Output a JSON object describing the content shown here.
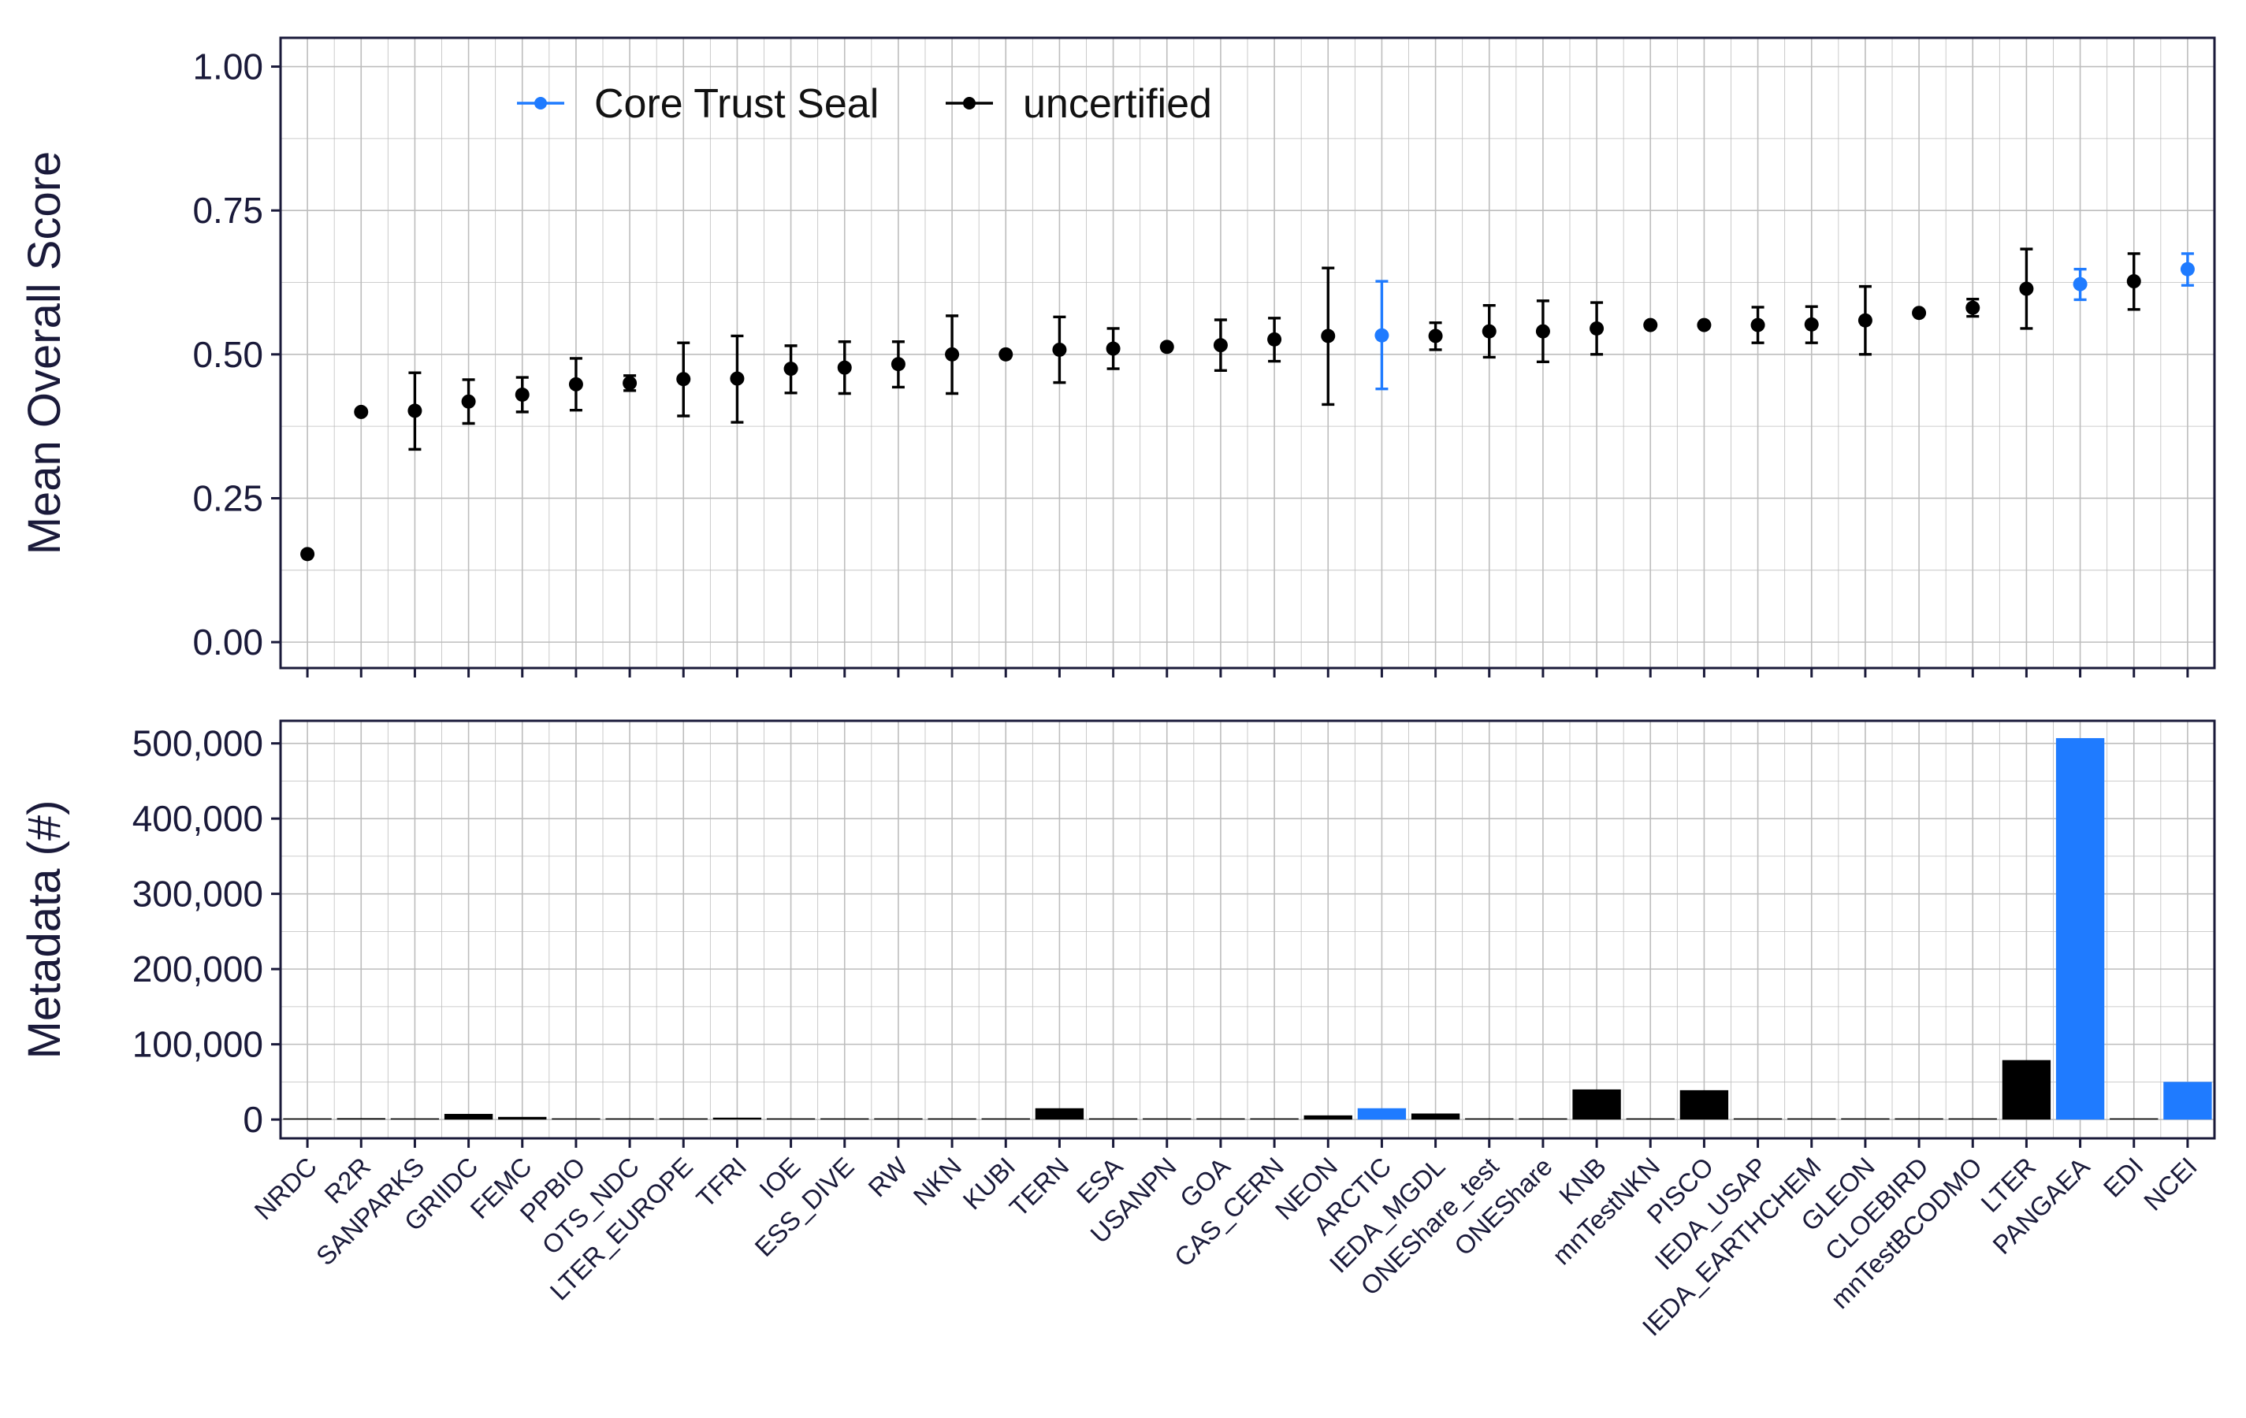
{
  "colors": {
    "certified": "#1f7bff",
    "uncertified": "#000000",
    "grid": "#bdbdbd",
    "text": "#1a1a3a",
    "frame": "#1a1a3a"
  },
  "legend": {
    "placement": "top-left",
    "items": [
      {
        "label": "Core Trust Seal",
        "color": "#1f7bff"
      },
      {
        "label": "uncertified",
        "color": "#000000"
      }
    ]
  },
  "chart_data": [
    {
      "type": "scatter",
      "panel": "top",
      "ylabel": "Mean Overall Score",
      "xlabel": "",
      "ylim": [
        -0.045,
        1.05
      ],
      "yticks": [
        0,
        0.25,
        0.5,
        0.75,
        1.0
      ],
      "ytick_labels": [
        "0.00",
        "0.25",
        "0.50",
        "0.75",
        "1.00"
      ],
      "grid": true,
      "error_bars": true,
      "categories": [
        "NRDC",
        "R2R",
        "SANPARKS",
        "GRIIDC",
        "FEMC",
        "PPBIO",
        "OTS_NDC",
        "LTER_EUROPE",
        "TFRI",
        "IOE",
        "ESS_DIVE",
        "RW",
        "NKN",
        "KUBI",
        "TERN",
        "ESA",
        "USANPN",
        "GOA",
        "CAS_CERN",
        "NEON",
        "ARCTIC",
        "IEDA_MGDL",
        "ONEShare_test",
        "ONEShare",
        "KNB",
        "mnTestNKN",
        "PISCO",
        "IEDA_USAP",
        "IEDA_EARTHCHEM",
        "GLEON",
        "CLOEBIRD",
        "mnTestBCODMO",
        "LTER",
        "PANGAEA",
        "EDI",
        "NCEI"
      ],
      "series": [
        {
          "name": "Core Trust Seal",
          "points": [
            {
              "x": "ARCTIC",
              "y": 0.533,
              "lo": 0.44,
              "hi": 0.627
            },
            {
              "x": "PANGAEA",
              "y": 0.622,
              "lo": 0.595,
              "hi": 0.648
            },
            {
              "x": "NCEI",
              "y": 0.648,
              "lo": 0.62,
              "hi": 0.675
            }
          ]
        },
        {
          "name": "uncertified",
          "points": [
            {
              "x": "NRDC",
              "y": 0.153
            },
            {
              "x": "R2R",
              "y": 0.4
            },
            {
              "x": "SANPARKS",
              "y": 0.402,
              "lo": 0.335,
              "hi": 0.468
            },
            {
              "x": "GRIIDC",
              "y": 0.418,
              "lo": 0.38,
              "hi": 0.456
            },
            {
              "x": "FEMC",
              "y": 0.43,
              "lo": 0.4,
              "hi": 0.46
            },
            {
              "x": "PPBIO",
              "y": 0.448,
              "lo": 0.403,
              "hi": 0.493
            },
            {
              "x": "OTS_NDC",
              "y": 0.45,
              "lo": 0.437,
              "hi": 0.463
            },
            {
              "x": "LTER_EUROPE",
              "y": 0.457,
              "lo": 0.393,
              "hi": 0.52
            },
            {
              "x": "TFRI",
              "y": 0.458,
              "lo": 0.382,
              "hi": 0.532
            },
            {
              "x": "IOE",
              "y": 0.475,
              "lo": 0.433,
              "hi": 0.515
            },
            {
              "x": "ESS_DIVE",
              "y": 0.477,
              "lo": 0.432,
              "hi": 0.522
            },
            {
              "x": "RW",
              "y": 0.483,
              "lo": 0.443,
              "hi": 0.522
            },
            {
              "x": "NKN",
              "y": 0.5,
              "lo": 0.432,
              "hi": 0.567
            },
            {
              "x": "KUBI",
              "y": 0.5
            },
            {
              "x": "TERN",
              "y": 0.508,
              "lo": 0.451,
              "hi": 0.565
            },
            {
              "x": "ESA",
              "y": 0.51,
              "lo": 0.475,
              "hi": 0.545
            },
            {
              "x": "USANPN",
              "y": 0.513
            },
            {
              "x": "GOA",
              "y": 0.516,
              "lo": 0.472,
              "hi": 0.56
            },
            {
              "x": "CAS_CERN",
              "y": 0.526,
              "lo": 0.488,
              "hi": 0.563
            },
            {
              "x": "NEON",
              "y": 0.532,
              "lo": 0.413,
              "hi": 0.65
            },
            {
              "x": "IEDA_MGDL",
              "y": 0.532,
              "lo": 0.508,
              "hi": 0.555
            },
            {
              "x": "ONEShare_test",
              "y": 0.54,
              "lo": 0.495,
              "hi": 0.585
            },
            {
              "x": "ONEShare",
              "y": 0.54,
              "lo": 0.487,
              "hi": 0.593
            },
            {
              "x": "KNB",
              "y": 0.545,
              "lo": 0.5,
              "hi": 0.59
            },
            {
              "x": "mnTestNKN",
              "y": 0.551
            },
            {
              "x": "PISCO",
              "y": 0.551
            },
            {
              "x": "IEDA_USAP",
              "y": 0.551,
              "lo": 0.52,
              "hi": 0.582
            },
            {
              "x": "IEDA_EARTHCHEM",
              "y": 0.552,
              "lo": 0.52,
              "hi": 0.583
            },
            {
              "x": "GLEON",
              "y": 0.559,
              "lo": 0.5,
              "hi": 0.618
            },
            {
              "x": "CLOEBIRD",
              "y": 0.572
            },
            {
              "x": "mnTestBCODMO",
              "y": 0.581,
              "lo": 0.566,
              "hi": 0.596
            },
            {
              "x": "LTER",
              "y": 0.614,
              "lo": 0.545,
              "hi": 0.683
            },
            {
              "x": "EDI",
              "y": 0.627,
              "lo": 0.578,
              "hi": 0.675
            }
          ]
        }
      ]
    },
    {
      "type": "bar",
      "panel": "bottom",
      "ylabel": "Metadata (#)",
      "xlabel": "",
      "ylim": [
        -25000,
        530000
      ],
      "yticks": [
        0,
        100000,
        200000,
        300000,
        400000,
        500000
      ],
      "ytick_labels": [
        "0",
        "100,000",
        "200,000",
        "300,000",
        "400,000",
        "500,000"
      ],
      "grid": true,
      "categories": [
        "NRDC",
        "R2R",
        "SANPARKS",
        "GRIIDC",
        "FEMC",
        "PPBIO",
        "OTS_NDC",
        "LTER_EUROPE",
        "TFRI",
        "IOE",
        "ESS_DIVE",
        "RW",
        "NKN",
        "KUBI",
        "TERN",
        "ESA",
        "USANPN",
        "GOA",
        "CAS_CERN",
        "NEON",
        "ARCTIC",
        "IEDA_MGDL",
        "ONEShare_test",
        "ONEShare",
        "KNB",
        "mnTestNKN",
        "PISCO",
        "IEDA_USAP",
        "IEDA_EARTHCHEM",
        "GLEON",
        "CLOEBIRD",
        "mnTestBCODMO",
        "LTER",
        "PANGAEA",
        "EDI",
        "NCEI"
      ],
      "values": [
        1500,
        1800,
        700,
        7500,
        3500,
        1200,
        300,
        300,
        2500,
        300,
        1200,
        200,
        200,
        200,
        15000,
        400,
        100,
        1200,
        400,
        5500,
        15000,
        8000,
        200,
        400,
        40000,
        200,
        39000,
        1200,
        1200,
        200,
        100,
        200,
        79000,
        507000,
        600,
        50000
      ],
      "certified": [
        "ARCTIC",
        "PANGAEA",
        "NCEI"
      ]
    }
  ]
}
